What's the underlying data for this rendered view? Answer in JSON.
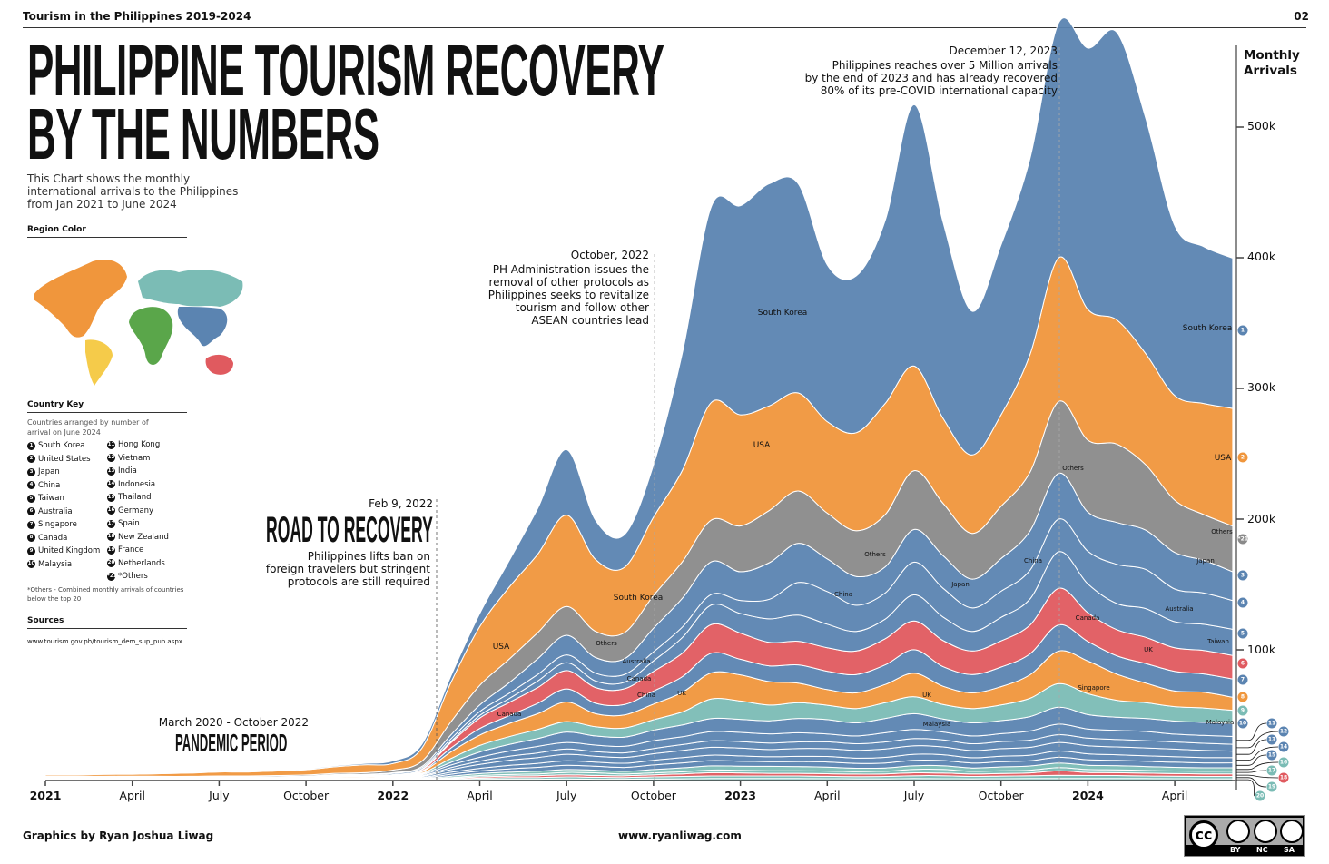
{
  "header": {
    "left": "Tourism in the Philippines 2019-2024",
    "right": "02"
  },
  "title": {
    "line1": "PHILIPPINE TOURISM RECOVERY",
    "line2": "BY THE NUMBERS"
  },
  "intro": "This Chart shows the monthly international arrivals to the Philippines from Jan 2021 to June 2024",
  "region_color": {
    "heading": "Region Color",
    "colors": {
      "asia": "#5b84b1",
      "north_america": "#f0963c",
      "south_america": "#f5cb4a",
      "europe": "#7bbcb5",
      "africa": "#5aa64a",
      "oceania": "#e05a5f"
    }
  },
  "country_key": {
    "heading": "Country Key",
    "note": "Countries arranged by number of arrival on June 2024",
    "items": [
      {
        "n": "1",
        "name": "South Korea"
      },
      {
        "n": "2",
        "name": "United States"
      },
      {
        "n": "3",
        "name": "Japan"
      },
      {
        "n": "4",
        "name": "China"
      },
      {
        "n": "5",
        "name": "Taiwan"
      },
      {
        "n": "6",
        "name": "Australia"
      },
      {
        "n": "7",
        "name": "Singapore"
      },
      {
        "n": "8",
        "name": "Canada"
      },
      {
        "n": "9",
        "name": "United Kingdom"
      },
      {
        "n": "10",
        "name": "Malaysia"
      },
      {
        "n": "11",
        "name": "Hong Kong"
      },
      {
        "n": "12",
        "name": "Vietnam"
      },
      {
        "n": "13",
        "name": "India"
      },
      {
        "n": "14",
        "name": "Indonesia"
      },
      {
        "n": "15",
        "name": "Thailand"
      },
      {
        "n": "16",
        "name": "Germany"
      },
      {
        "n": "17",
        "name": "Spain"
      },
      {
        "n": "18",
        "name": "New Zealand"
      },
      {
        "n": "19",
        "name": "France"
      },
      {
        "n": "20",
        "name": "Netherlands"
      },
      {
        "n": "*21",
        "name": "*Others"
      }
    ],
    "footnote": "*Others - Combined monthly arrivals of countries below the top 20"
  },
  "sources": {
    "heading": "Sources",
    "url": "www.tourism.gov.ph/tourism_dem_sup_pub.aspx"
  },
  "annotations": {
    "pandemic": {
      "dates": "March 2020 - October 2022",
      "title": "PANDEMIC PERIOD"
    },
    "feb2022": {
      "date": "Feb 9, 2022",
      "title": "ROAD TO RECOVERY",
      "text": [
        "Philippines lifts ban on",
        "foreign travelers but stringent",
        "protocols are still required"
      ]
    },
    "oct2022": {
      "date": "October, 2022",
      "text": [
        "PH Administration issues the",
        "removal of other protocols as",
        "Philippines seeks to revitalize",
        "tourism and follow other",
        "ASEAN countries lead"
      ]
    },
    "dec2023": {
      "date": "December 12, 2023",
      "text": [
        "Philippines reaches over 5 Million arrivals",
        "by the end of 2023 and has already recovered",
        "80% of its pre-COVID international capacity"
      ]
    }
  },
  "footer": {
    "credit": "Graphics by Ryan Joshua Liwag",
    "site": "www.ryanliwag.com",
    "license": [
      "BY",
      "NC",
      "SA"
    ],
    "license_mark": "cc"
  },
  "chart_data": {
    "type": "area",
    "ylabel": "Monthly Arrivals",
    "y_unit": "k",
    "ylim": [
      0,
      540
    ],
    "y_ticks": [
      "100k",
      "200k",
      "300k",
      "400k",
      "500k"
    ],
    "x_range": [
      "2021-01",
      "2024-06"
    ],
    "x_ticks": [
      {
        "label": "2021",
        "bold": true
      },
      {
        "label": "April"
      },
      {
        "label": "July"
      },
      {
        "label": "October"
      },
      {
        "label": "2022",
        "bold": true
      },
      {
        "label": "April"
      },
      {
        "label": "July"
      },
      {
        "label": "October"
      },
      {
        "label": "2023",
        "bold": true
      },
      {
        "label": "April"
      },
      {
        "label": "July"
      },
      {
        "label": "October"
      },
      {
        "label": "2024",
        "bold": true
      },
      {
        "label": "April"
      }
    ],
    "grid": false,
    "series": [
      {
        "rank": "20",
        "name": "Netherlands",
        "color": "#7bbcb5",
        "values": [
          0.05,
          0.05,
          0.05,
          0.05,
          0.05,
          0.05,
          0.05,
          0.05,
          0.05,
          0.05,
          0.1,
          0.1,
          0.1,
          0.2,
          0.5,
          0.8,
          1,
          1,
          1.2,
          1,
          1,
          1.2,
          1.3,
          1.5,
          1.5,
          1.5,
          1.5,
          1.4,
          1.3,
          1.3,
          1.5,
          1.4,
          1.3,
          1.4,
          1.5,
          1.6,
          1.6,
          1.6,
          1.5,
          1.4,
          1.3,
          1.3
        ]
      },
      {
        "rank": "19",
        "name": "France",
        "color": "#7bbcb5",
        "values": [
          0.05,
          0.05,
          0.05,
          0.05,
          0.05,
          0.05,
          0.05,
          0.05,
          0.05,
          0.1,
          0.1,
          0.1,
          0.1,
          0.2,
          0.6,
          1,
          1.2,
          1.3,
          1.6,
          1.5,
          1.3,
          1.6,
          1.8,
          2,
          2,
          2,
          2,
          1.8,
          1.7,
          1.8,
          2.2,
          2.3,
          1.8,
          2,
          2.1,
          2.4,
          2.2,
          2.2,
          2,
          1.9,
          1.8,
          1.8
        ]
      },
      {
        "rank": "18",
        "name": "New Zealand",
        "color": "#e05a5f",
        "values": [
          0.05,
          0.05,
          0.05,
          0.05,
          0.05,
          0.05,
          0.05,
          0.05,
          0.05,
          0.1,
          0.1,
          0.1,
          0.1,
          0.2,
          0.6,
          1,
          1.2,
          1.4,
          1.6,
          1.4,
          1.3,
          1.6,
          2,
          2.5,
          2.3,
          2,
          2,
          2,
          1.9,
          2,
          2.2,
          2,
          1.9,
          2,
          2.2,
          3.5,
          2.4,
          2.2,
          2.1,
          2,
          2,
          2
        ]
      },
      {
        "rank": "17",
        "name": "Spain",
        "color": "#7bbcb5",
        "values": [
          0.05,
          0.05,
          0.05,
          0.05,
          0.05,
          0.05,
          0.05,
          0.05,
          0.05,
          0.1,
          0.1,
          0.1,
          0.1,
          0.2,
          0.6,
          1,
          1.2,
          1.4,
          1.8,
          2,
          1.4,
          1.5,
          1.6,
          2,
          2,
          2,
          2,
          2,
          1.9,
          2,
          2.6,
          2.8,
          2,
          2,
          2.1,
          2.4,
          2.2,
          2.2,
          2.1,
          2,
          2,
          2.1
        ]
      },
      {
        "rank": "16",
        "name": "Germany",
        "color": "#7bbcb5",
        "values": [
          0.1,
          0.1,
          0.1,
          0.1,
          0.1,
          0.1,
          0.1,
          0.1,
          0.1,
          0.1,
          0.2,
          0.2,
          0.2,
          0.4,
          1,
          1.5,
          1.8,
          2,
          2.2,
          2,
          2,
          2.5,
          3,
          3.2,
          3.2,
          3.3,
          3.2,
          3,
          2.6,
          2.5,
          2.8,
          2.8,
          2.6,
          3,
          3.2,
          3.4,
          3.3,
          3.2,
          3,
          2.8,
          2.6,
          2.5
        ]
      },
      {
        "rank": "15",
        "name": "Thailand",
        "color": "#5b84b1",
        "values": [
          0.1,
          0.1,
          0.1,
          0.1,
          0.1,
          0.1,
          0.1,
          0.1,
          0.1,
          0.1,
          0.2,
          0.2,
          0.3,
          0.5,
          1.5,
          2,
          2.5,
          3,
          3.2,
          3,
          3,
          3.5,
          3.8,
          4,
          3.8,
          3.6,
          3.8,
          4,
          3.7,
          3.8,
          4.2,
          4,
          3.8,
          4,
          4,
          4.5,
          4.2,
          4,
          4,
          3.9,
          3.8,
          3.8
        ]
      },
      {
        "rank": "14",
        "name": "Indonesia",
        "color": "#5b84b1",
        "values": [
          0.1,
          0.1,
          0.1,
          0.1,
          0.1,
          0.1,
          0.1,
          0.1,
          0.1,
          0.1,
          0.2,
          0.2,
          0.3,
          0.5,
          1.5,
          2,
          2.6,
          3,
          3.5,
          3.2,
          3.2,
          3.6,
          4,
          4.2,
          4,
          3.8,
          4,
          4.2,
          4,
          4.3,
          4.6,
          4.4,
          4,
          4.2,
          4.3,
          4.8,
          4.5,
          4.3,
          4.2,
          4.2,
          4.1,
          4
        ]
      },
      {
        "rank": "13",
        "name": "India",
        "color": "#5b84b1",
        "values": [
          0.2,
          0.2,
          0.2,
          0.2,
          0.1,
          0.1,
          0.2,
          0.2,
          0.2,
          0.2,
          0.3,
          0.3,
          0.4,
          0.8,
          2,
          3,
          4,
          4.5,
          5,
          4.5,
          4.5,
          5,
          5.5,
          6,
          6,
          5.5,
          6,
          6,
          6,
          6.5,
          6.5,
          6,
          5.5,
          5.8,
          6,
          6.5,
          6.2,
          6,
          6,
          5.8,
          5.5,
          5
        ]
      },
      {
        "rank": "12",
        "name": "Vietnam",
        "color": "#5b84b1",
        "values": [
          0.1,
          0.1,
          0.1,
          0.1,
          0.1,
          0.1,
          0.1,
          0.1,
          0.1,
          0.1,
          0.2,
          0.2,
          0.3,
          0.6,
          1.5,
          2.5,
          3,
          3.5,
          4,
          3.5,
          3.5,
          4,
          4.5,
          5,
          5,
          5,
          5,
          5.2,
          5,
          5.3,
          5.5,
          5.4,
          5.2,
          5.4,
          5.5,
          6,
          5.8,
          5.7,
          5.6,
          5.5,
          5.4,
          5.2
        ]
      },
      {
        "rank": "11",
        "name": "Hong Kong",
        "color": "#5b84b1",
        "values": [
          0.1,
          0.1,
          0.1,
          0.1,
          0.1,
          0.1,
          0.1,
          0.1,
          0.1,
          0.1,
          0.1,
          0.1,
          0.5,
          0.8,
          2,
          3,
          4,
          5,
          5,
          5,
          5,
          6,
          6,
          7,
          7,
          7,
          7,
          6,
          6,
          7,
          7,
          6,
          6,
          6,
          7,
          8,
          7,
          7,
          7,
          6,
          6,
          6
        ]
      },
      {
        "rank": "10",
        "name": "Malaysia",
        "color": "#5b84b1",
        "label": "Malaysia",
        "values": [
          0.1,
          0.1,
          0.1,
          0.1,
          0.1,
          0.1,
          0.1,
          0.1,
          0.1,
          0.1,
          0.2,
          0.2,
          0.3,
          0.6,
          2,
          4,
          5,
          6,
          8,
          7,
          7,
          8,
          9,
          10,
          10,
          10,
          11,
          11,
          10,
          11,
          12,
          10,
          10,
          10,
          11,
          13,
          11,
          10,
          10,
          10,
          10,
          10
        ]
      },
      {
        "rank": "9",
        "name": "United Kingdom",
        "color": "#7bbcb5",
        "label": "UK",
        "values": [
          0.2,
          0.2,
          0.2,
          0.2,
          0.2,
          0.2,
          0.2,
          0.2,
          0.3,
          0.3,
          0.4,
          0.4,
          0.3,
          0.6,
          3,
          5,
          6,
          7,
          8,
          7,
          7,
          8,
          10,
          15,
          14,
          12,
          12,
          11,
          11,
          12,
          13,
          11,
          11,
          12,
          14,
          18,
          16,
          13,
          12,
          11,
          11,
          10
        ]
      },
      {
        "rank": "8",
        "name": "Canada",
        "color": "#f0963c",
        "label": "Canada",
        "values": [
          0.3,
          0.3,
          0.3,
          0.3,
          0.3,
          0.3,
          0.4,
          0.4,
          0.5,
          0.6,
          0.7,
          0.8,
          0.5,
          1,
          5,
          8,
          10,
          12,
          15,
          10,
          10,
          12,
          15,
          20,
          20,
          18,
          15,
          12,
          12,
          14,
          18,
          14,
          12,
          14,
          18,
          25,
          25,
          20,
          15,
          12,
          12,
          10
        ]
      },
      {
        "rank": "7",
        "name": "Singapore",
        "color": "#5b84b1",
        "label": "Singapore",
        "values": [
          0.1,
          0.1,
          0.1,
          0.1,
          0.1,
          0.1,
          0.1,
          0.1,
          0.1,
          0.1,
          0.2,
          0.2,
          0.3,
          0.6,
          3,
          5,
          6,
          8,
          10,
          8,
          8,
          10,
          12,
          15,
          12,
          12,
          14,
          14,
          14,
          15,
          18,
          15,
          14,
          15,
          16,
          20,
          15,
          14,
          15,
          15,
          14,
          14
        ]
      },
      {
        "rank": "6",
        "name": "Australia",
        "color": "#e05a5f",
        "label": "Australia",
        "values": [
          0.2,
          0.2,
          0.2,
          0.2,
          0.2,
          0.2,
          0.2,
          0.2,
          0.2,
          0.2,
          0.3,
          0.4,
          0.5,
          1,
          4,
          8,
          10,
          12,
          14,
          12,
          12,
          15,
          18,
          22,
          20,
          18,
          18,
          18,
          18,
          20,
          22,
          20,
          18,
          20,
          22,
          28,
          22,
          20,
          20,
          18,
          18,
          18
        ]
      },
      {
        "rank": "5",
        "name": "Taiwan",
        "color": "#5b84b1",
        "label": "Taiwan",
        "values": [
          0.1,
          0.1,
          0.1,
          0.1,
          0.1,
          0.1,
          0.1,
          0.1,
          0.1,
          0.1,
          0.1,
          0.1,
          0.2,
          0.5,
          1,
          2,
          3,
          5,
          6,
          5,
          5,
          8,
          12,
          15,
          15,
          18,
          20,
          18,
          15,
          15,
          20,
          18,
          15,
          18,
          20,
          28,
          22,
          20,
          22,
          20,
          20,
          20
        ]
      },
      {
        "rank": "4",
        "name": "China",
        "color": "#5b84b1",
        "label": "China",
        "values": [
          0.5,
          0.5,
          0.5,
          0.5,
          0.5,
          0.5,
          0.5,
          0.5,
          0.5,
          0.5,
          0.6,
          0.6,
          1,
          1,
          2,
          3,
          4,
          5,
          6,
          6,
          6,
          7,
          8,
          8,
          10,
          15,
          25,
          25,
          20,
          20,
          25,
          22,
          18,
          20,
          22,
          25,
          25,
          30,
          30,
          25,
          24,
          22
        ]
      },
      {
        "rank": "3",
        "name": "Japan",
        "color": "#5b84b1",
        "label": "Japan",
        "values": [
          0.3,
          0.3,
          0.3,
          0.3,
          0.3,
          0.3,
          0.3,
          0.3,
          0.3,
          0.4,
          0.4,
          0.5,
          0.5,
          1,
          3,
          5,
          8,
          12,
          15,
          12,
          12,
          18,
          22,
          25,
          22,
          28,
          30,
          25,
          22,
          20,
          25,
          25,
          22,
          25,
          30,
          35,
          30,
          32,
          30,
          28,
          25,
          22
        ]
      },
      {
        "rank": "*21",
        "name": "Others",
        "color": "#8a8a8a",
        "label": "Others",
        "values": [
          0.5,
          0.5,
          0.5,
          0.6,
          0.6,
          0.6,
          0.7,
          0.7,
          0.8,
          0.9,
          1,
          1.2,
          2,
          4,
          10,
          15,
          18,
          20,
          22,
          20,
          20,
          25,
          28,
          32,
          35,
          40,
          40,
          35,
          35,
          40,
          45,
          40,
          35,
          40,
          45,
          55,
          55,
          60,
          50,
          40,
          35,
          35
        ]
      },
      {
        "rank": "2",
        "name": "United States",
        "color": "#f0963c",
        "label": "USA",
        "values": [
          1,
          1,
          1.5,
          1.5,
          2,
          2.5,
          3,
          3,
          3.5,
          4,
          5,
          6,
          5,
          10,
          30,
          45,
          55,
          60,
          70,
          55,
          50,
          60,
          70,
          90,
          85,
          80,
          75,
          70,
          75,
          85,
          80,
          65,
          60,
          70,
          90,
          110,
          100,
          95,
          85,
          80,
          85,
          90
        ]
      },
      {
        "rank": "1",
        "name": "South Korea",
        "color": "#5b84b1",
        "label": "South Korea",
        "values": [
          0.3,
          0.3,
          0.3,
          0.4,
          0.4,
          0.5,
          0.5,
          0.5,
          0.6,
          0.7,
          0.8,
          1,
          2,
          3,
          5,
          10,
          20,
          35,
          50,
          30,
          25,
          40,
          90,
          150,
          160,
          170,
          160,
          120,
          120,
          140,
          200,
          150,
          110,
          130,
          150,
          180,
          200,
          220,
          180,
          130,
          120,
          115
        ]
      }
    ]
  }
}
